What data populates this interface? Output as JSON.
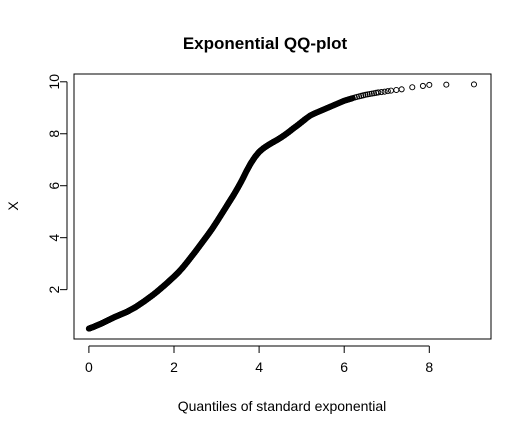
{
  "chart_data": {
    "type": "scatter",
    "title": "Exponential QQ-plot",
    "xlabel": "Quantiles of standard exponential",
    "ylabel": "X",
    "xlim": [
      -0.35,
      9.45
    ],
    "ylim": [
      0.1,
      10.3
    ],
    "x_ticks": [
      0,
      2,
      4,
      6,
      8
    ],
    "y_ticks": [
      2,
      4,
      6,
      8,
      10
    ],
    "x_tick_labels": [
      "0",
      "2",
      "4",
      "6",
      "8"
    ],
    "y_tick_labels": [
      "2",
      "4",
      "6",
      "8",
      "10"
    ],
    "grid": false,
    "marker": "open-circle",
    "colors": {
      "points": "#000000",
      "axes": "#000000",
      "background": "#ffffff"
    },
    "series": [
      {
        "points": [
          [
            0.0,
            0.5
          ],
          [
            0.1,
            0.56
          ],
          [
            0.2,
            0.63
          ],
          [
            0.3,
            0.7
          ],
          [
            0.4,
            0.78
          ],
          [
            0.5,
            0.86
          ],
          [
            0.6,
            0.94
          ],
          [
            0.7,
            1.01
          ],
          [
            0.8,
            1.08
          ],
          [
            0.9,
            1.15
          ],
          [
            1.0,
            1.24
          ],
          [
            1.1,
            1.33
          ],
          [
            1.2,
            1.44
          ],
          [
            1.3,
            1.55
          ],
          [
            1.4,
            1.67
          ],
          [
            1.5,
            1.79
          ],
          [
            1.6,
            1.92
          ],
          [
            1.7,
            2.06
          ],
          [
            1.8,
            2.2
          ],
          [
            1.9,
            2.35
          ],
          [
            2.0,
            2.5
          ],
          [
            2.1,
            2.66
          ],
          [
            2.2,
            2.84
          ],
          [
            2.3,
            3.04
          ],
          [
            2.4,
            3.25
          ],
          [
            2.5,
            3.46
          ],
          [
            2.6,
            3.68
          ],
          [
            2.7,
            3.9
          ],
          [
            2.8,
            4.12
          ],
          [
            2.9,
            4.35
          ],
          [
            3.0,
            4.6
          ],
          [
            3.1,
            4.86
          ],
          [
            3.2,
            5.12
          ],
          [
            3.3,
            5.38
          ],
          [
            3.4,
            5.64
          ],
          [
            3.5,
            5.92
          ],
          [
            3.6,
            6.22
          ],
          [
            3.7,
            6.55
          ],
          [
            3.8,
            6.85
          ],
          [
            3.9,
            7.1
          ],
          [
            4.0,
            7.3
          ],
          [
            4.1,
            7.44
          ],
          [
            4.2,
            7.55
          ],
          [
            4.3,
            7.65
          ],
          [
            4.4,
            7.74
          ],
          [
            4.5,
            7.84
          ],
          [
            4.6,
            7.95
          ],
          [
            4.7,
            8.07
          ],
          [
            4.8,
            8.2
          ],
          [
            4.9,
            8.32
          ],
          [
            5.0,
            8.45
          ],
          [
            5.1,
            8.58
          ],
          [
            5.2,
            8.7
          ],
          [
            5.3,
            8.78
          ],
          [
            5.4,
            8.85
          ],
          [
            5.5,
            8.92
          ],
          [
            5.6,
            8.99
          ],
          [
            5.7,
            9.06
          ],
          [
            5.8,
            9.13
          ],
          [
            5.9,
            9.2
          ],
          [
            6.0,
            9.27
          ],
          [
            6.1,
            9.32
          ],
          [
            6.2,
            9.37
          ],
          [
            6.3,
            9.42
          ],
          [
            6.4,
            9.46
          ],
          [
            6.5,
            9.5
          ],
          [
            6.6,
            9.53
          ],
          [
            6.7,
            9.56
          ],
          [
            6.8,
            9.59
          ],
          [
            6.95,
            9.62
          ],
          [
            7.1,
            9.66
          ],
          [
            7.35,
            9.71
          ],
          [
            7.6,
            9.79
          ],
          [
            7.85,
            9.84
          ],
          [
            8.0,
            9.88
          ],
          [
            8.4,
            9.89
          ],
          [
            9.05,
            9.9
          ]
        ]
      }
    ]
  }
}
